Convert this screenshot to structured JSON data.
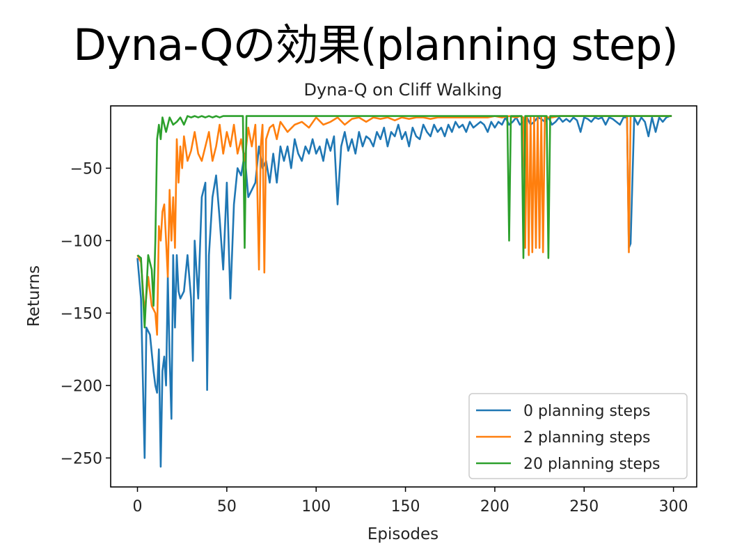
{
  "slide": {
    "title": "Dyna-Qの効果(planning step)"
  },
  "chart_data": {
    "type": "line",
    "title": "Dyna-Q on Cliff Walking",
    "xlabel": "Episodes",
    "ylabel": "Returns",
    "xlim": [
      -15,
      313
    ],
    "ylim": [
      -270,
      -7
    ],
    "xticks": [
      0,
      50,
      100,
      150,
      200,
      250,
      300
    ],
    "xtick_labels": [
      "0",
      "50",
      "100",
      "150",
      "200",
      "250",
      "300"
    ],
    "yticks": [
      -50,
      -100,
      -150,
      -200,
      -250
    ],
    "ytick_labels": [
      "−50",
      "−100",
      "−150",
      "−200",
      "−250"
    ],
    "grid": false,
    "legend_position": "lower-right",
    "series": [
      {
        "name": "0 planning steps",
        "color": "#1f77b4",
        "x": [
          0,
          2,
          4,
          5,
          7,
          9,
          10,
          11,
          12,
          13,
          14,
          15,
          16,
          17,
          18,
          19,
          20,
          21,
          22,
          23,
          24,
          26,
          28,
          30,
          31,
          32,
          34,
          36,
          38,
          39,
          40,
          42,
          44,
          46,
          48,
          50,
          52,
          54,
          56,
          58,
          60,
          62,
          64,
          66,
          68,
          70,
          72,
          74,
          76,
          78,
          80,
          82,
          84,
          86,
          88,
          90,
          92,
          94,
          96,
          98,
          100,
          102,
          104,
          106,
          108,
          110,
          112,
          114,
          116,
          118,
          120,
          122,
          124,
          126,
          128,
          130,
          132,
          134,
          136,
          138,
          140,
          142,
          144,
          146,
          148,
          150,
          152,
          154,
          156,
          158,
          160,
          162,
          164,
          166,
          168,
          170,
          172,
          174,
          176,
          178,
          180,
          182,
          184,
          186,
          188,
          190,
          192,
          194,
          196,
          198,
          200,
          202,
          204,
          206,
          208,
          210,
          212,
          214,
          216,
          218,
          220,
          222,
          224,
          226,
          228,
          230,
          232,
          234,
          236,
          238,
          240,
          242,
          244,
          246,
          248,
          250,
          252,
          254,
          256,
          258,
          260,
          262,
          264,
          266,
          268,
          270,
          272,
          274,
          275,
          276,
          278,
          280,
          282,
          284,
          286,
          288,
          290,
          292,
          294,
          296,
          298,
          299
        ],
        "values": [
          -112,
          -140,
          -250,
          -160,
          -165,
          -190,
          -200,
          -205,
          -175,
          -256,
          -190,
          -180,
          -200,
          -125,
          -180,
          -223,
          -110,
          -160,
          -110,
          -135,
          -140,
          -135,
          -110,
          -140,
          -183,
          -100,
          -140,
          -70,
          -60,
          -203,
          -110,
          -70,
          -55,
          -85,
          -120,
          -60,
          -140,
          -75,
          -50,
          -55,
          -40,
          -70,
          -65,
          -60,
          -35,
          -50,
          -45,
          -60,
          -40,
          -60,
          -35,
          -45,
          -35,
          -50,
          -30,
          -40,
          -45,
          -35,
          -40,
          -30,
          -40,
          -35,
          -45,
          -30,
          -38,
          -28,
          -75,
          -35,
          -25,
          -38,
          -30,
          -40,
          -25,
          -35,
          -28,
          -30,
          -35,
          -25,
          -30,
          -22,
          -35,
          -25,
          -28,
          -20,
          -30,
          -25,
          -35,
          -22,
          -28,
          -30,
          -20,
          -25,
          -28,
          -20,
          -25,
          -22,
          -28,
          -20,
          -25,
          -18,
          -22,
          -20,
          -25,
          -18,
          -22,
          -20,
          -18,
          -20,
          -25,
          -18,
          -22,
          -18,
          -20,
          -15,
          -20,
          -18,
          -15,
          -20,
          -18,
          -15,
          -20,
          -18,
          -15,
          -16,
          -18,
          -15,
          -20,
          -18,
          -15,
          -18,
          -16,
          -18,
          -15,
          -17,
          -25,
          -15,
          -16,
          -18,
          -15,
          -16,
          -15,
          -20,
          -15,
          -16,
          -18,
          -20,
          -15,
          -15,
          -105,
          -102,
          -15,
          -20,
          -15,
          -18,
          -28,
          -15,
          -25,
          -15,
          -18,
          -15,
          -14,
          -14
        ]
      },
      {
        "name": "2 planning steps",
        "color": "#ff7f0e",
        "x": [
          0,
          2,
          4,
          6,
          8,
          10,
          11,
          12,
          13,
          14,
          15,
          16,
          17,
          18,
          19,
          20,
          21,
          22,
          23,
          24,
          25,
          26,
          28,
          30,
          32,
          34,
          36,
          38,
          40,
          42,
          44,
          46,
          48,
          50,
          52,
          54,
          56,
          58,
          60,
          62,
          64,
          66,
          67,
          68,
          69,
          70,
          71,
          72,
          74,
          76,
          78,
          80,
          84,
          88,
          92,
          96,
          100,
          104,
          108,
          112,
          116,
          120,
          124,
          128,
          132,
          136,
          140,
          144,
          148,
          152,
          156,
          160,
          164,
          168,
          172,
          176,
          180,
          184,
          188,
          192,
          196,
          200,
          204,
          208,
          212,
          214,
          216,
          217,
          218,
          219,
          220,
          221,
          222,
          223,
          224,
          225,
          226,
          227,
          228,
          232,
          236,
          240,
          244,
          248,
          252,
          256,
          260,
          264,
          268,
          272,
          274,
          275,
          276,
          280,
          284,
          288,
          292,
          296,
          299
        ],
        "values": [
          -110,
          -115,
          -150,
          -125,
          -145,
          -150,
          -165,
          -90,
          -100,
          -80,
          -75,
          -100,
          -125,
          -65,
          -100,
          -70,
          -105,
          -30,
          -60,
          -35,
          -50,
          -28,
          -45,
          -38,
          -25,
          -40,
          -45,
          -35,
          -25,
          -45,
          -35,
          -20,
          -40,
          -25,
          -35,
          -20,
          -40,
          -30,
          -45,
          -22,
          -35,
          -20,
          -60,
          -120,
          -35,
          -20,
          -122,
          -30,
          -22,
          -20,
          -30,
          -18,
          -25,
          -20,
          -18,
          -22,
          -15,
          -20,
          -18,
          -15,
          -20,
          -16,
          -15,
          -18,
          -15,
          -16,
          -15,
          -17,
          -15,
          -16,
          -15,
          -15,
          -16,
          -15,
          -15,
          -15,
          -15,
          -15,
          -15,
          -15,
          -15,
          -14,
          -15,
          -14,
          -15,
          -14,
          -15,
          -105,
          -15,
          -110,
          -15,
          -108,
          -15,
          -105,
          -15,
          -105,
          -15,
          -108,
          -15,
          -15,
          -14,
          -14,
          -14,
          -14,
          -14,
          -14,
          -14,
          -14,
          -14,
          -14,
          -14,
          -108,
          -14,
          -14,
          -14,
          -14,
          -14,
          -14,
          -14
        ]
      },
      {
        "name": "20 planning steps",
        "color": "#2ca02c",
        "x": [
          0,
          2,
          4,
          6,
          8,
          9,
          10,
          11,
          12,
          13,
          14,
          15,
          16,
          18,
          20,
          22,
          24,
          26,
          28,
          30,
          32,
          34,
          36,
          38,
          40,
          42,
          44,
          46,
          48,
          50,
          54,
          58,
          59,
          60,
          61,
          62,
          64,
          66,
          68,
          72,
          80,
          100,
          120,
          140,
          160,
          180,
          200,
          206,
          207,
          208,
          209,
          210,
          214,
          215,
          216,
          217,
          218,
          220,
          228,
          229,
          230,
          231,
          232,
          240,
          260,
          280,
          299
        ],
        "values": [
          -110,
          -112,
          -160,
          -110,
          -120,
          -145,
          -100,
          -30,
          -20,
          -30,
          -15,
          -20,
          -25,
          -15,
          -20,
          -18,
          -15,
          -20,
          -14,
          -15,
          -14,
          -15,
          -14,
          -15,
          -14,
          -15,
          -14,
          -15,
          -14,
          -14,
          -14,
          -14,
          -14,
          -105,
          -14,
          -14,
          -14,
          -14,
          -14,
          -14,
          -14,
          -14,
          -14,
          -14,
          -14,
          -14,
          -14,
          -14,
          -14,
          -100,
          -14,
          -14,
          -14,
          -14,
          -112,
          -14,
          -14,
          -14,
          -14,
          -14,
          -112,
          -14,
          -14,
          -14,
          -14,
          -14,
          -14
        ]
      }
    ]
  }
}
